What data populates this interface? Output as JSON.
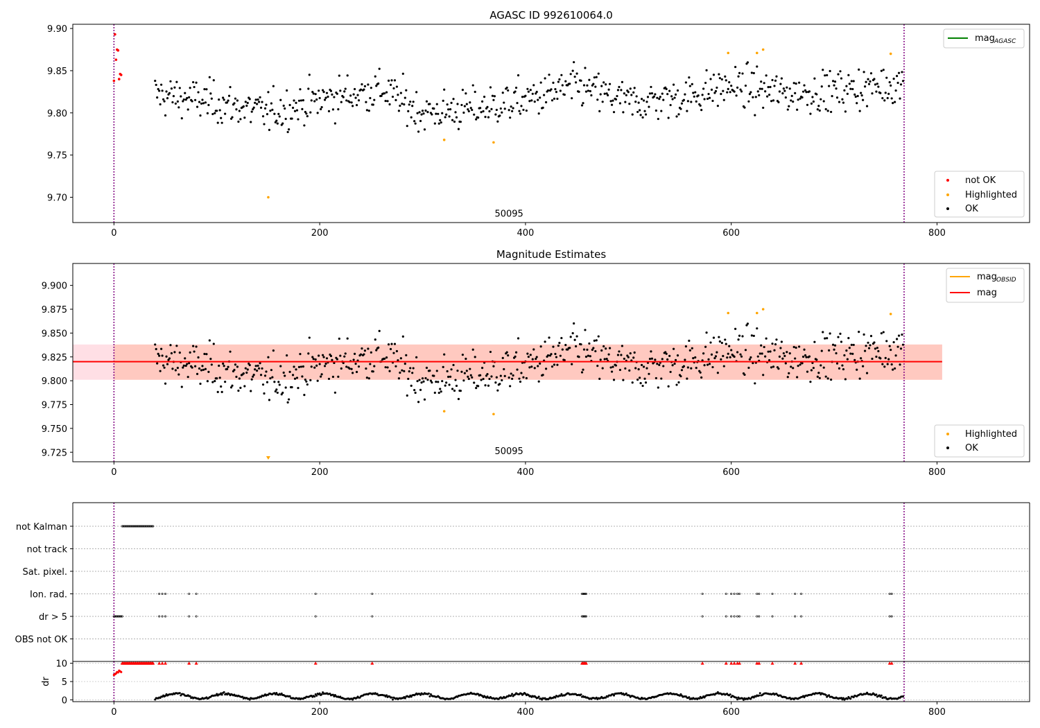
{
  "chart_data": [
    {
      "type": "scatter",
      "title": "AGASC ID 992610064.0",
      "xlim": [
        -40,
        890
      ],
      "ylim": [
        9.67,
        9.905
      ],
      "xticks": [
        0,
        200,
        400,
        600,
        800
      ],
      "yticks": [
        9.7,
        9.75,
        9.8,
        9.85,
        9.9
      ],
      "ytick_labels": [
        "9.70",
        "9.75",
        "9.80",
        "9.85",
        "9.90"
      ],
      "vlines": [
        0,
        768
      ],
      "vline_color": "#800080",
      "annotation": {
        "text": "50095",
        "x": 384,
        "y": 9.677
      },
      "legend_top": {
        "position": "top-right",
        "entries": [
          {
            "label": "mag",
            "subscript": "AGASC",
            "color": "#008000"
          }
        ]
      },
      "legend_bottom": {
        "position": "bottom-right",
        "entries": [
          {
            "label": "not OK",
            "color": "#ff0000"
          },
          {
            "label": "Highlighted",
            "color": "#ffa500"
          },
          {
            "label": "OK",
            "color": "#000000"
          }
        ]
      },
      "series": [
        {
          "name": "not OK",
          "color": "#ff0000",
          "x": [
            0,
            1,
            2,
            3,
            4,
            5,
            6,
            7
          ],
          "y": [
            9.838,
            9.893,
            9.863,
            9.875,
            9.874,
            9.84,
            9.846,
            9.845
          ]
        },
        {
          "name": "Highlighted",
          "color": "#ffa500",
          "x": [
            150,
            321,
            369,
            597,
            625,
            631,
            755
          ],
          "y": [
            9.7,
            9.768,
            9.765,
            9.871,
            9.871,
            9.875,
            9.87
          ]
        },
        {
          "name": "OK",
          "color": "#000000",
          "generated_from_trend": true,
          "x_range": [
            40,
            767
          ],
          "trend_x": [
            40,
            100,
            150,
            200,
            260,
            300,
            350,
            400,
            450,
            500,
            550,
            600,
            650,
            700,
            767
          ],
          "trend_y": [
            9.822,
            9.812,
            9.8,
            9.815,
            9.828,
            9.8,
            9.805,
            9.815,
            9.832,
            9.812,
            9.818,
            9.832,
            9.823,
            9.826,
            9.835
          ]
        }
      ]
    },
    {
      "type": "scatter",
      "title": "Magnitude Estimates",
      "xlim": [
        -40,
        890
      ],
      "ylim": [
        9.715,
        9.923
      ],
      "xticks": [
        0,
        200,
        400,
        600,
        800
      ],
      "yticks": [
        9.725,
        9.75,
        9.775,
        9.8,
        9.825,
        9.85,
        9.875,
        9.9
      ],
      "ytick_labels": [
        "9.725",
        "9.750",
        "9.775",
        "9.800",
        "9.825",
        "9.850",
        "9.875",
        "9.900"
      ],
      "vlines": [
        0,
        768
      ],
      "annotation": {
        "text": "50095",
        "x": 384,
        "y": 9.723
      },
      "mag_line": {
        "value": 9.82,
        "color": "#ff0000",
        "x_range": [
          -40,
          805
        ]
      },
      "band_outer": {
        "y": [
          9.801,
          9.838
        ],
        "color": "#ffc0cb",
        "x_range": [
          -40,
          805
        ]
      },
      "band_inner": {
        "y": [
          9.801,
          9.838
        ],
        "color": "#ffa07a",
        "x_range": [
          0,
          805
        ]
      },
      "lower_limit_marker": {
        "x": 150,
        "color": "#ffa500"
      },
      "legend_top": {
        "position": "top-right",
        "entries": [
          {
            "label": "mag",
            "subscript": "OBSID",
            "color": "#ffa500"
          },
          {
            "label": "mag",
            "color": "#ff0000"
          }
        ]
      },
      "legend_bottom": {
        "position": "bottom-right",
        "entries": [
          {
            "label": "Highlighted",
            "color": "#ffa500"
          },
          {
            "label": "OK",
            "color": "#000000"
          }
        ]
      }
    },
    {
      "type": "scatter",
      "title": "",
      "xlim": [
        -40,
        890
      ],
      "categories": [
        "not Kalman",
        "not track",
        "Sat. pixel.",
        "Ion. rad.",
        "dr > 5",
        "OBS not OK"
      ],
      "vlines": [
        0,
        768
      ],
      "flags": {
        "not Kalman": {
          "ranges": [
            [
              8,
              38
            ]
          ],
          "points": []
        },
        "not track": {
          "ranges": [],
          "points": []
        },
        "Sat. pixel.": {
          "ranges": [],
          "points": []
        },
        "Ion. rad.": {
          "ranges": [],
          "points": [
            44,
            47,
            50,
            73,
            80,
            196,
            251,
            455,
            456,
            457,
            458,
            459,
            572,
            595,
            600,
            603,
            606,
            608,
            625,
            627,
            640,
            662,
            668,
            754,
            756
          ]
        },
        "dr > 5": {
          "ranges": [
            [
              0,
              8
            ]
          ],
          "points": [
            44,
            47,
            50,
            73,
            80,
            196,
            251,
            455,
            456,
            457,
            458,
            459,
            572,
            595,
            600,
            603,
            606,
            608,
            625,
            627,
            640,
            662,
            668,
            754,
            756
          ]
        },
        "OBS not OK": {
          "ranges": [],
          "points": []
        }
      }
    },
    {
      "type": "scatter",
      "ylabel": "dr",
      "xlim": [
        -40,
        890
      ],
      "ylim": [
        -0.5,
        10.5
      ],
      "yticks": [
        0,
        5,
        10
      ],
      "ytick_labels": [
        "0",
        "5",
        "10"
      ],
      "xticks": [
        0,
        200,
        400,
        600,
        800
      ],
      "vlines": [
        0,
        768
      ],
      "clipped_markers": {
        "color": "#ff0000",
        "y": 10,
        "ranges": [
          [
            8,
            38
          ]
        ],
        "points": [
          44,
          47,
          50,
          73,
          80,
          196,
          251,
          455,
          456,
          457,
          458,
          459,
          572,
          595,
          600,
          603,
          606,
          608,
          625,
          627,
          640,
          662,
          668,
          754,
          756
        ]
      },
      "early_points": {
        "color": "#ff0000",
        "x": [
          0,
          1,
          2,
          3,
          4,
          5,
          6,
          7
        ],
        "y": [
          6.8,
          7.0,
          7.2,
          7.6,
          7.5,
          8.0,
          7.8,
          7.6
        ]
      },
      "dr_series": {
        "color": "#000000",
        "x_range": [
          40,
          767
        ],
        "period": 48,
        "base": 1.0,
        "amplitude": 0.7
      }
    }
  ]
}
